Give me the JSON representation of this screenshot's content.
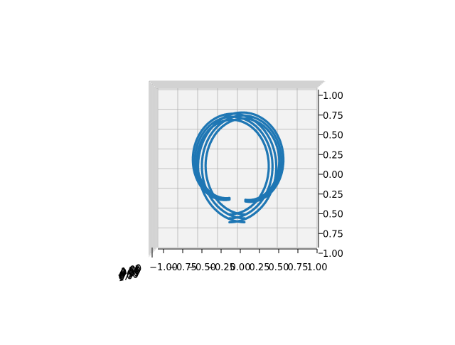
{
  "colors": {
    "series": "#1f77b4",
    "pane": "#f2f2f2",
    "pane_side": "#e6e6e6",
    "grid": "#b0b0b0",
    "axis_line": "#808080"
  },
  "chart_data": {
    "type": "scatter",
    "projection": "3d",
    "view": "top-down",
    "title": "",
    "xlabel": "",
    "ylabel": "",
    "zlabel": "",
    "grid": true,
    "legend": "none",
    "xlim": [
      -1.0,
      1.0
    ],
    "ylim": [
      -1.0,
      1.0
    ],
    "x_tick_labels": [
      "−1.00",
      "−0.75",
      "−0.50",
      "−0.25",
      "0.00",
      "0.25",
      "0.50",
      "0.75",
      "1.00"
    ],
    "y_tick_labels": [
      "1.00",
      "0.75",
      "0.50",
      "0.25",
      "0.00",
      "0.25",
      "0.50",
      "0.75",
      "1.00"
    ],
    "z_tick_labels": [
      "1.00",
      "0.75",
      "0.50",
      "0.25",
      "0.00",
      "0.25",
      "0.50",
      "0.75",
      "1.00"
    ],
    "series": [
      {
        "marker": "o",
        "shape": "spiral ribbon",
        "turns": 2,
        "start": [
          0.0,
          -0.55
        ],
        "end": [
          0.0,
          -0.7
        ],
        "center": [
          -0.05,
          0.05
        ],
        "radius_range": [
          0.4,
          0.68
        ],
        "points": 600
      }
    ]
  }
}
